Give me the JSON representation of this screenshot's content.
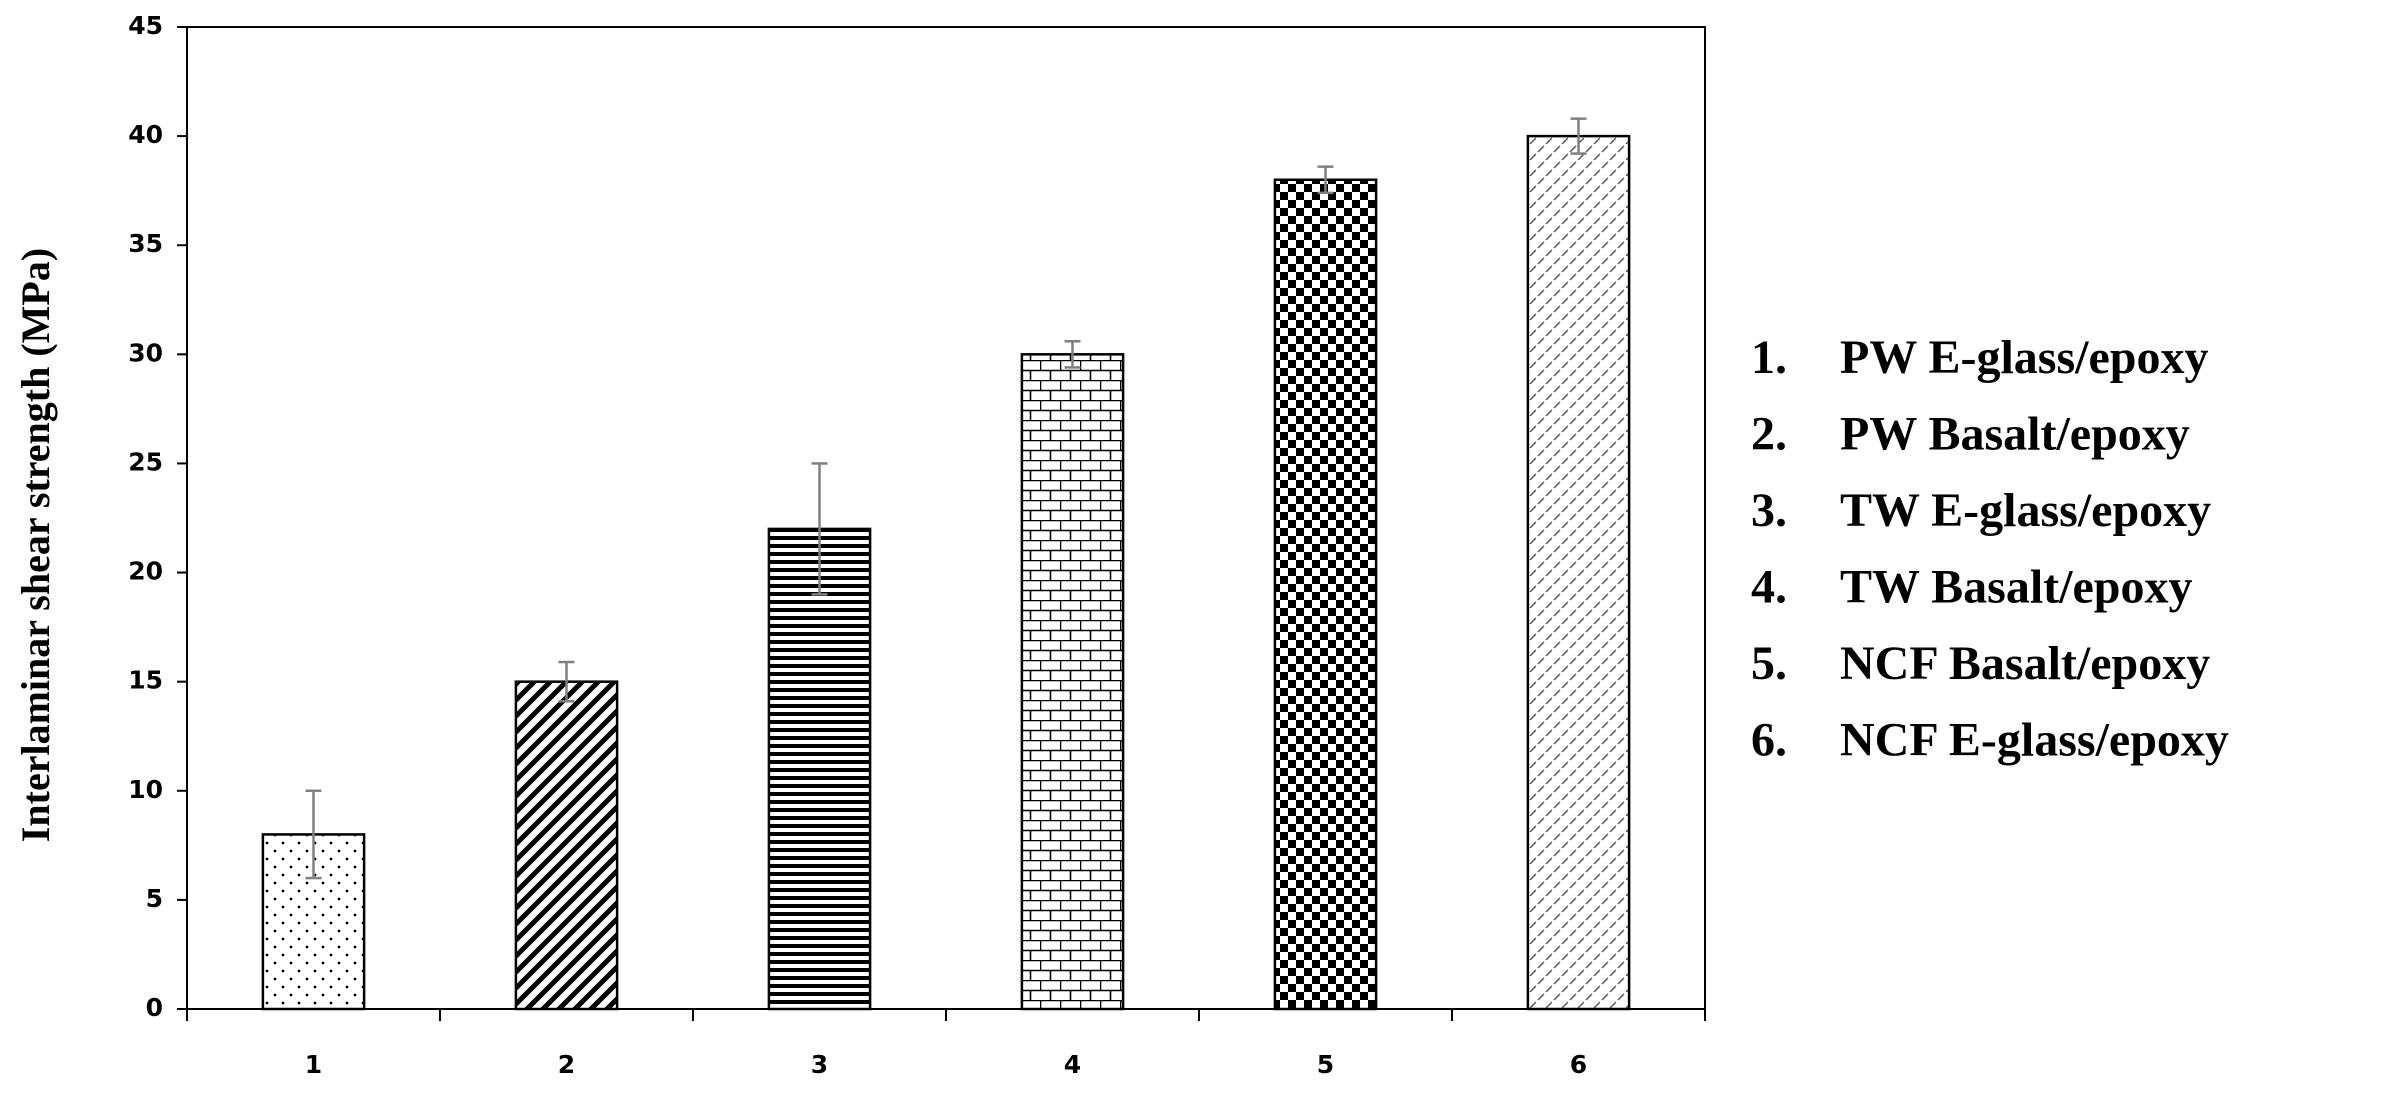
{
  "chart_data": {
    "type": "bar",
    "y_label": "Interlaminar shear strength (MPa)",
    "categories": [
      "1",
      "2",
      "3",
      "4",
      "5",
      "6"
    ],
    "values": [
      8,
      15,
      22,
      30,
      38,
      40
    ],
    "errors": [
      2,
      0.9,
      3,
      0.6,
      0.6,
      0.8
    ],
    "patterns": [
      "dots",
      "diagonal",
      "horizontal",
      "brick",
      "checker",
      "dashes"
    ],
    "color": "#000000",
    "error_color": "#808080",
    "ylim": [
      0,
      45
    ],
    "yticks": [
      0,
      5,
      10,
      15,
      20,
      25,
      30,
      35,
      40,
      45
    ],
    "legend": [
      {
        "marker": "1.",
        "text": "PW E-glass/epoxy"
      },
      {
        "marker": "2.",
        "text": "PW Basalt/epoxy"
      },
      {
        "marker": "3.",
        "text": "TW E-glass/epoxy"
      },
      {
        "marker": "4.",
        "text": "TW Basalt/epoxy"
      },
      {
        "marker": "5.",
        "text": "NCF Basalt/epoxy"
      },
      {
        "marker": "6.",
        "text": "NCF E-glass/epoxy"
      }
    ]
  }
}
